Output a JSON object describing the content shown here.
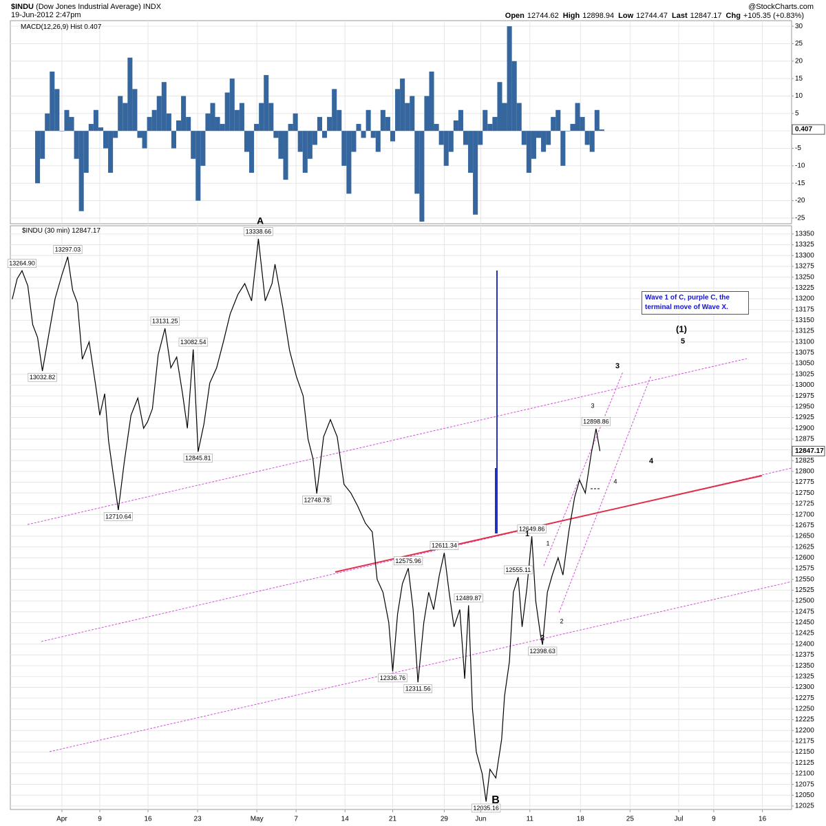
{
  "header": {
    "symbol": "$INDU",
    "name": "(Dow Jones Industrial Average)",
    "exchange": "INDX",
    "date": "19-Jun-2012 2:47pm",
    "source": "@StockCharts.com",
    "quote": [
      {
        "label": "Open",
        "value": 12744.62
      },
      {
        "label": "High",
        "value": 12898.94
      },
      {
        "label": "Low",
        "value": 12744.47
      },
      {
        "label": "Last",
        "value": 12847.17
      },
      {
        "label": "Chg",
        "value": "+105.35 (+0.83%)"
      }
    ]
  },
  "chart_data": [
    {
      "type": "bar",
      "name": "MACD(12,26,9) Hist",
      "color": "#35679e",
      "grid": true,
      "xlim": [
        -5.3,
        75.0
      ],
      "ylim": [
        -26.6,
        31.6
      ],
      "yticks": [
        -25,
        -20,
        -15,
        -10,
        -5,
        0,
        5,
        10,
        15,
        20,
        25,
        30
      ],
      "x": [
        -2.5,
        -2,
        -1.5,
        -1,
        -0.5,
        0,
        0.5,
        1,
        1.5,
        2,
        2.5,
        3,
        3.5,
        4,
        4.5,
        5,
        5.5,
        6,
        6.5,
        7,
        7.5,
        8,
        8.5,
        9,
        9.5,
        10,
        10.5,
        11,
        11.5,
        12,
        12.5,
        13,
        13.5,
        14,
        14.5,
        15,
        15.5,
        16,
        16.5,
        17,
        17.5,
        18,
        18.5,
        19,
        19.5,
        20,
        20.5,
        21,
        21.5,
        22,
        22.5,
        23,
        23.5,
        24,
        24.5,
        25,
        25.5,
        26,
        26.5,
        27,
        27.5,
        28,
        28.5,
        29,
        29.5,
        30,
        30.5,
        31,
        31.5,
        32,
        32.5,
        33,
        33.5,
        34,
        34.5,
        35,
        35.5,
        36,
        36.5,
        37,
        37.5,
        38,
        38.5,
        39,
        39.5,
        40,
        40.5,
        41,
        41.5,
        42,
        42.5,
        43,
        43.5,
        44,
        44.5,
        45,
        45.5,
        46,
        46.5,
        47,
        47.5,
        48,
        48.5,
        49,
        49.5,
        50,
        50.5,
        51,
        51.5,
        52,
        52.5,
        53,
        53.5,
        54,
        54.5,
        55,
        55.5
      ],
      "values": [
        -15,
        -8,
        5,
        17,
        12,
        0,
        6,
        4,
        -8,
        -23,
        -12,
        2,
        6,
        1,
        -5,
        -12,
        -2,
        10,
        8,
        21,
        12,
        -2,
        -5,
        4,
        6,
        10,
        14,
        5,
        -5,
        3,
        10,
        4,
        -8,
        -20,
        -10,
        5,
        8,
        4,
        2,
        11,
        15,
        6,
        8,
        -6,
        -12,
        2,
        8,
        16,
        8,
        -2,
        -8,
        -14,
        2,
        5,
        -6,
        -12,
        -8,
        -4,
        4,
        -2,
        4,
        12,
        6,
        -10,
        -18,
        -6,
        2,
        -2,
        6,
        -2,
        -6,
        6,
        4,
        -3,
        12,
        15,
        8,
        10,
        -18,
        -26,
        10,
        17,
        2,
        -4,
        -10,
        -6,
        3,
        6,
        -4,
        -12,
        -24,
        -4,
        6,
        2,
        4,
        14,
        8,
        30,
        20,
        8,
        -4,
        -12,
        -8,
        -2,
        -6,
        -4,
        4,
        6,
        -10,
        0,
        2,
        8,
        4,
        -4,
        -6,
        6,
        0.407
      ]
    },
    {
      "type": "line",
      "color": "#000000",
      "grid": true,
      "xlim": [
        -5.3,
        75.0
      ],
      "ylim": [
        12017,
        13369
      ],
      "xticks": [
        {
          "value": 0,
          "label": "Apr"
        },
        {
          "value": 3.9,
          "label": "9"
        },
        {
          "value": 8.85,
          "label": "16"
        },
        {
          "value": 13.95,
          "label": "23"
        },
        {
          "value": 20.04,
          "label": "May"
        },
        {
          "value": 24.07,
          "label": "7"
        },
        {
          "value": 29.1,
          "label": "14"
        },
        {
          "value": 34,
          "label": "21"
        },
        {
          "value": 39.3,
          "label": "29"
        },
        {
          "value": 43.05,
          "label": "Jun"
        },
        {
          "value": 48.1,
          "label": "11"
        },
        {
          "value": 53.3,
          "label": "18"
        },
        {
          "value": 58.4,
          "label": "25"
        },
        {
          "value": 63.4,
          "label": "Jul"
        },
        {
          "value": 67,
          "label": "9"
        },
        {
          "value": 72,
          "label": "16"
        }
      ],
      "yticks": [
        12025,
        12050,
        12075,
        12100,
        12125,
        12150,
        12175,
        12200,
        12225,
        12250,
        12275,
        12300,
        12325,
        12350,
        12375,
        12400,
        12425,
        12450,
        12475,
        12500,
        12525,
        12550,
        12575,
        12600,
        12625,
        12650,
        12675,
        12700,
        12725,
        12750,
        12775,
        12800,
        12825,
        12850,
        12875,
        12900,
        12925,
        12950,
        12975,
        13000,
        13025,
        13050,
        13075,
        13100,
        13125,
        13150,
        13175,
        13200,
        13225,
        13250,
        13275,
        13300,
        13325,
        13350
      ],
      "series": [
        {
          "name": "$INDU (30 min)",
          "color": "#000000",
          "x": [
            -5.1,
            -4.6,
            -4.1,
            -3.5,
            -3.0,
            -2.5,
            -2.0,
            -1.4,
            -0.7,
            0,
            0.6,
            1.1,
            1.6,
            2.1,
            2.8,
            3.5,
            3.9,
            4.4,
            4.8,
            5.3,
            5.8,
            6.4,
            7.1,
            7.8,
            8.4,
            8.8,
            9.3,
            9.9,
            10.6,
            11.2,
            11.8,
            12.4,
            12.9,
            13.5,
            14.0,
            14.6,
            15.2,
            15.9,
            16.6,
            17.3,
            18.1,
            18.8,
            19.5,
            20.2,
            20.9,
            21.6,
            21.9,
            22.7,
            23.4,
            24.1,
            24.8,
            25.3,
            25.8,
            26.2,
            26.9,
            27.6,
            28.3,
            29.0,
            29.7,
            30.4,
            31.2,
            31.9,
            32.4,
            33.0,
            33.6,
            34.0,
            34.5,
            35.0,
            35.6,
            36.1,
            36.6,
            37.2,
            37.7,
            38.2,
            38.8,
            39.3,
            39.8,
            40.3,
            40.9,
            41.4,
            41.8,
            42.2,
            42.6,
            43.2,
            43.6,
            44.0,
            44.6,
            45.2,
            45.5,
            46.0,
            46.4,
            46.9,
            47.3,
            47.8,
            48.3,
            48.7,
            49.2,
            49.4,
            49.9,
            50.4,
            51.0,
            51.5,
            52.1,
            52.7,
            53.2,
            53.8,
            54.4,
            54.9,
            55.3
          ],
          "values": [
            13199,
            13246,
            13264.9,
            13230,
            13140,
            13110,
            13032.82,
            13110,
            13200,
            13255,
            13297.03,
            13220,
            13190,
            13060,
            13100,
            12995,
            12930,
            12980,
            12870,
            12790,
            12710.64,
            12820,
            12930,
            12970,
            12900,
            12915,
            12945,
            13070,
            13131.25,
            13040,
            13065,
            12980,
            12900,
            13082.54,
            12845.81,
            12910,
            13005,
            13040,
            13100,
            13165,
            13210,
            13235,
            13195,
            13338.66,
            13195,
            13235,
            13280,
            13180,
            13080,
            13020,
            12975,
            12875,
            12830,
            12748.78,
            12880,
            12920,
            12880,
            12770,
            12750,
            12720,
            12680,
            12660,
            12550,
            12520,
            12450,
            12336.76,
            12470,
            12540,
            12575.96,
            12480,
            12311.56,
            12450,
            12520,
            12480,
            12560,
            12611.34,
            12520,
            12440,
            12480,
            12320,
            12489.87,
            12250,
            12150,
            12100,
            12035.16,
            12110,
            12090,
            12180,
            12280,
            12360,
            12520,
            12555.11,
            12440,
            12530,
            12649.86,
            12500,
            12420,
            12398.63,
            12520,
            12560,
            12600,
            12560,
            12660,
            12740,
            12780,
            12750,
            12840,
            12898.86,
            12847.17
          ],
          "value_labels": [
            null,
            null,
            "13264.90",
            null,
            null,
            null,
            "13032.82",
            null,
            null,
            null,
            "13297.03",
            null,
            null,
            null,
            null,
            null,
            null,
            null,
            null,
            null,
            "12710.64",
            null,
            null,
            null,
            null,
            null,
            null,
            null,
            "13131.25",
            null,
            null,
            null,
            null,
            "13082.54",
            "12845.81",
            null,
            null,
            null,
            null,
            null,
            null,
            null,
            null,
            "13338.66",
            null,
            null,
            null,
            null,
            null,
            null,
            null,
            null,
            null,
            "12748.78",
            null,
            null,
            null,
            null,
            null,
            null,
            null,
            null,
            null,
            null,
            null,
            "12336.76",
            null,
            null,
            "12575.96",
            null,
            "12311.56",
            null,
            null,
            null,
            null,
            "12611.34",
            null,
            null,
            null,
            null,
            "12489.87",
            null,
            null,
            null,
            "12035.16",
            null,
            null,
            null,
            null,
            null,
            null,
            "12555.11",
            null,
            null,
            "12649.86",
            null,
            null,
            "12398.63",
            null,
            null,
            null,
            null,
            null,
            null,
            null,
            null,
            null,
            "12898.86",
            null
          ]
        }
      ],
      "waves": [
        "A",
        "B",
        "1",
        "2",
        "3",
        "4",
        "5",
        "(1)"
      ],
      "minor_waves": [
        "1",
        "2",
        "3",
        "4"
      ],
      "note": "Wave 1 of C, purple C, the terminal move of Wave X."
    }
  ]
}
